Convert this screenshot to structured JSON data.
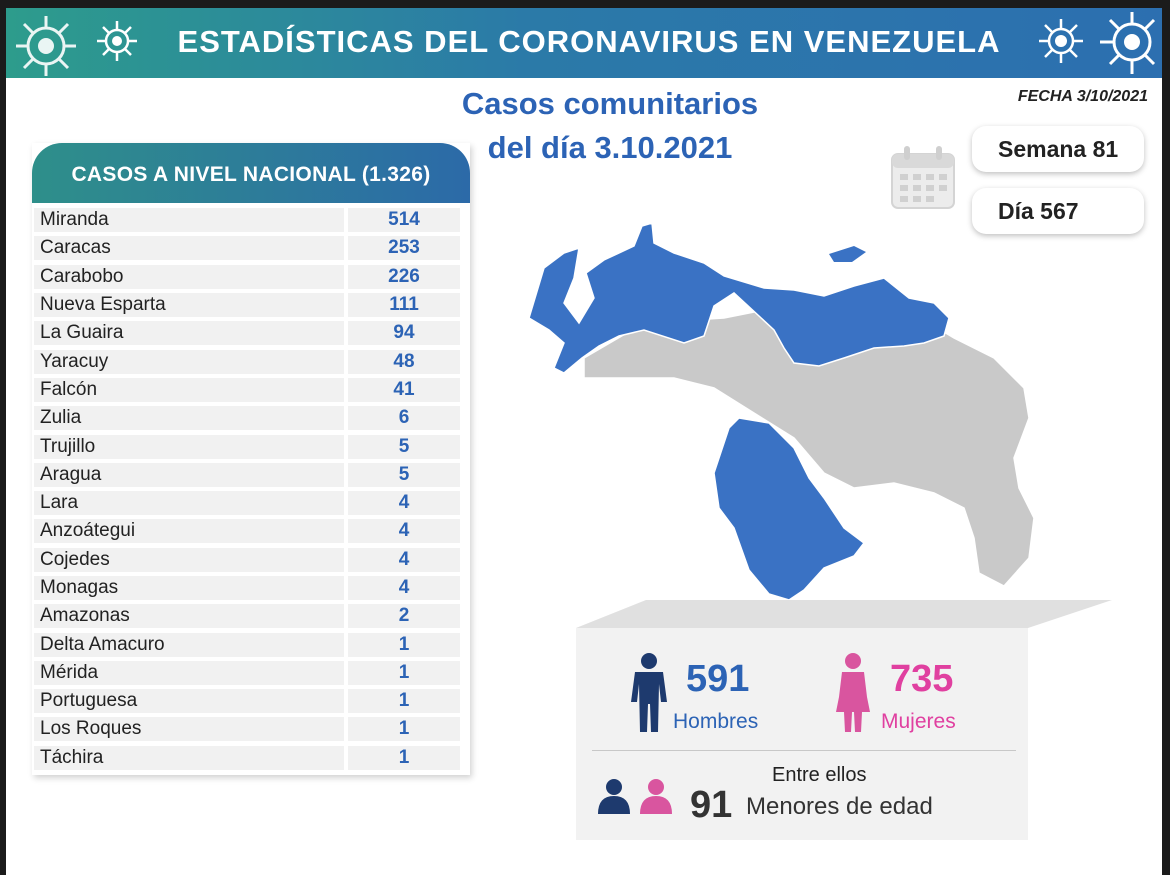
{
  "header": {
    "title": "ESTADÍSTICAS DEL CORONAVIRUS EN VENEZUELA"
  },
  "subtitle": {
    "line1": "Casos comunitarios",
    "line2": "del día 3.10.2021"
  },
  "fecha": "FECHA 3/10/2021",
  "semana": "Semana 81",
  "dia": "Día 567",
  "table": {
    "title": "CASOS A NIVEL NACIONAL (1.326)",
    "rows": [
      {
        "state": "Miranda",
        "cases": "514"
      },
      {
        "state": "Caracas",
        "cases": "253"
      },
      {
        "state": "Carabobo",
        "cases": "226"
      },
      {
        "state": "Nueva Esparta",
        "cases": "111"
      },
      {
        "state": "La Guaira",
        "cases": "94"
      },
      {
        "state": "Yaracuy",
        "cases": "48"
      },
      {
        "state": "Falcón",
        "cases": "41"
      },
      {
        "state": "Zulia",
        "cases": "6"
      },
      {
        "state": "Trujillo",
        "cases": "5"
      },
      {
        "state": "Aragua",
        "cases": "5"
      },
      {
        "state": "Lara",
        "cases": "4"
      },
      {
        "state": "Anzoátegui",
        "cases": "4"
      },
      {
        "state": "Cojedes",
        "cases": "4"
      },
      {
        "state": "Monagas",
        "cases": "4"
      },
      {
        "state": "Amazonas",
        "cases": "2"
      },
      {
        "state": "Delta Amacuro",
        "cases": "1"
      },
      {
        "state": "Mérida",
        "cases": "1"
      },
      {
        "state": "Portuguesa",
        "cases": "1"
      },
      {
        "state": "Los Roques",
        "cases": "1"
      },
      {
        "state": "Táchira",
        "cases": "1"
      }
    ]
  },
  "stats": {
    "men_count": "591",
    "men_label": "Hombres",
    "women_count": "735",
    "women_label": "Mujeres",
    "minors_intro": "Entre ellos",
    "minors_count": "91",
    "minors_label": "Menores de edad"
  },
  "colors": {
    "accent_blue": "#2c63b5",
    "women_pink": "#e040a0",
    "men_navy": "#1e3a6e",
    "map_blue": "#3a72c4",
    "map_gray": "#c9c9c9"
  }
}
